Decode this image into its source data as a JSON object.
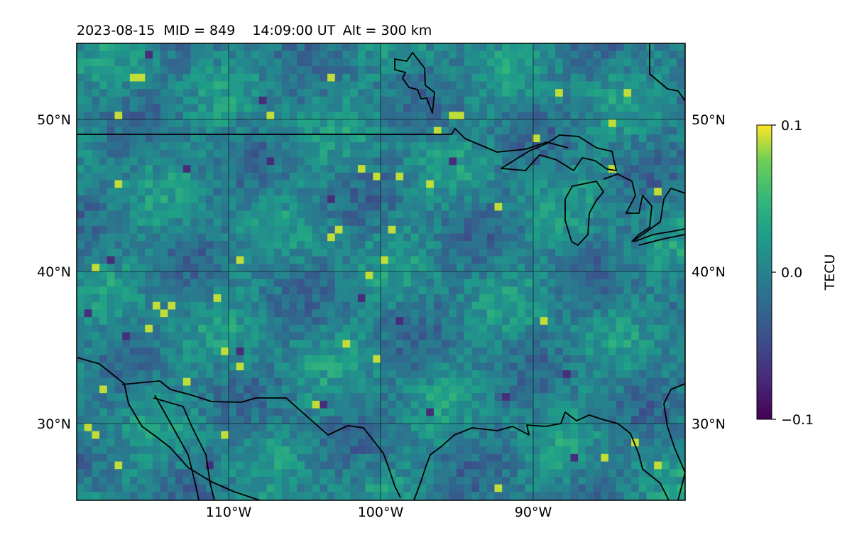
{
  "title": {
    "date": "2023-08-15",
    "mid": "MID = 849",
    "time": "14:09:00  UT",
    "alt": "Alt = 300 km"
  },
  "map": {
    "lon_range": [
      -120,
      -80
    ],
    "lat_range": [
      25,
      55
    ],
    "gridlines": true,
    "lat_ticks": [
      {
        "value": 50,
        "label": "50°N"
      },
      {
        "value": 40,
        "label": "40°N"
      },
      {
        "value": 30,
        "label": "30°N"
      }
    ],
    "lon_ticks": [
      {
        "value": -110,
        "label": "110°W"
      },
      {
        "value": -100,
        "label": "100°W"
      },
      {
        "value": -90,
        "label": "90°W"
      }
    ],
    "coastlines_and_borders": true,
    "colormap": "viridis",
    "data_field": "TEC anomaly (gridded cells)"
  },
  "colorbar": {
    "label": "TECU",
    "min": -0.1,
    "max": 0.1,
    "ticks": [
      {
        "value": 0.1,
        "label": "0.1"
      },
      {
        "value": 0.0,
        "label": "0.0"
      },
      {
        "value": -0.1,
        "label": "−0.1"
      }
    ]
  },
  "colors": {
    "viridis_low": "#440154",
    "viridis_mid": "#21918c",
    "viridis_high": "#fde725",
    "gridline": "#000000",
    "coastline": "#000000"
  }
}
